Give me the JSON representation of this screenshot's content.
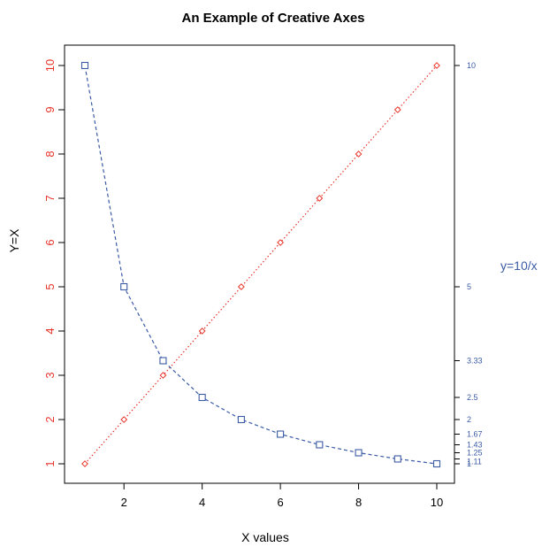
{
  "chart_data": {
    "type": "line",
    "title": "An Example of Creative Axes",
    "xlabel": "X values",
    "ylabel": "Y=X",
    "y2label": "y=10/x",
    "xlim": [
      1,
      10
    ],
    "ylim": [
      1,
      10
    ],
    "x_ticks": [
      "2",
      "4",
      "6",
      "8",
      "10"
    ],
    "y_ticks": [
      "1",
      "2",
      "3",
      "4",
      "5",
      "6",
      "7",
      "8",
      "9",
      "10"
    ],
    "y2_ticks": [
      "1",
      "1.11",
      "1.25",
      "1.43",
      "1.67",
      "2",
      "2.5",
      "3.33",
      "5",
      "10"
    ],
    "x": [
      1,
      2,
      3,
      4,
      5,
      6,
      7,
      8,
      9,
      10
    ],
    "series": [
      {
        "values": [
          1,
          2,
          3,
          4,
          5,
          6,
          7,
          8,
          9,
          10
        ],
        "color": "#e8332a",
        "marker": "diamond",
        "line": "dotted"
      },
      {
        "values": [
          10,
          5,
          3.33,
          2.5,
          2,
          1.67,
          1.43,
          1.25,
          1.11,
          1
        ],
        "color": "#3b5ba5",
        "marker": "square",
        "line": "dashed"
      }
    ],
    "colors": {
      "left_axis": "#e8332a",
      "right_axis": "#3b5ba5",
      "frame": "#000000"
    },
    "grid": false,
    "legend": "none"
  }
}
